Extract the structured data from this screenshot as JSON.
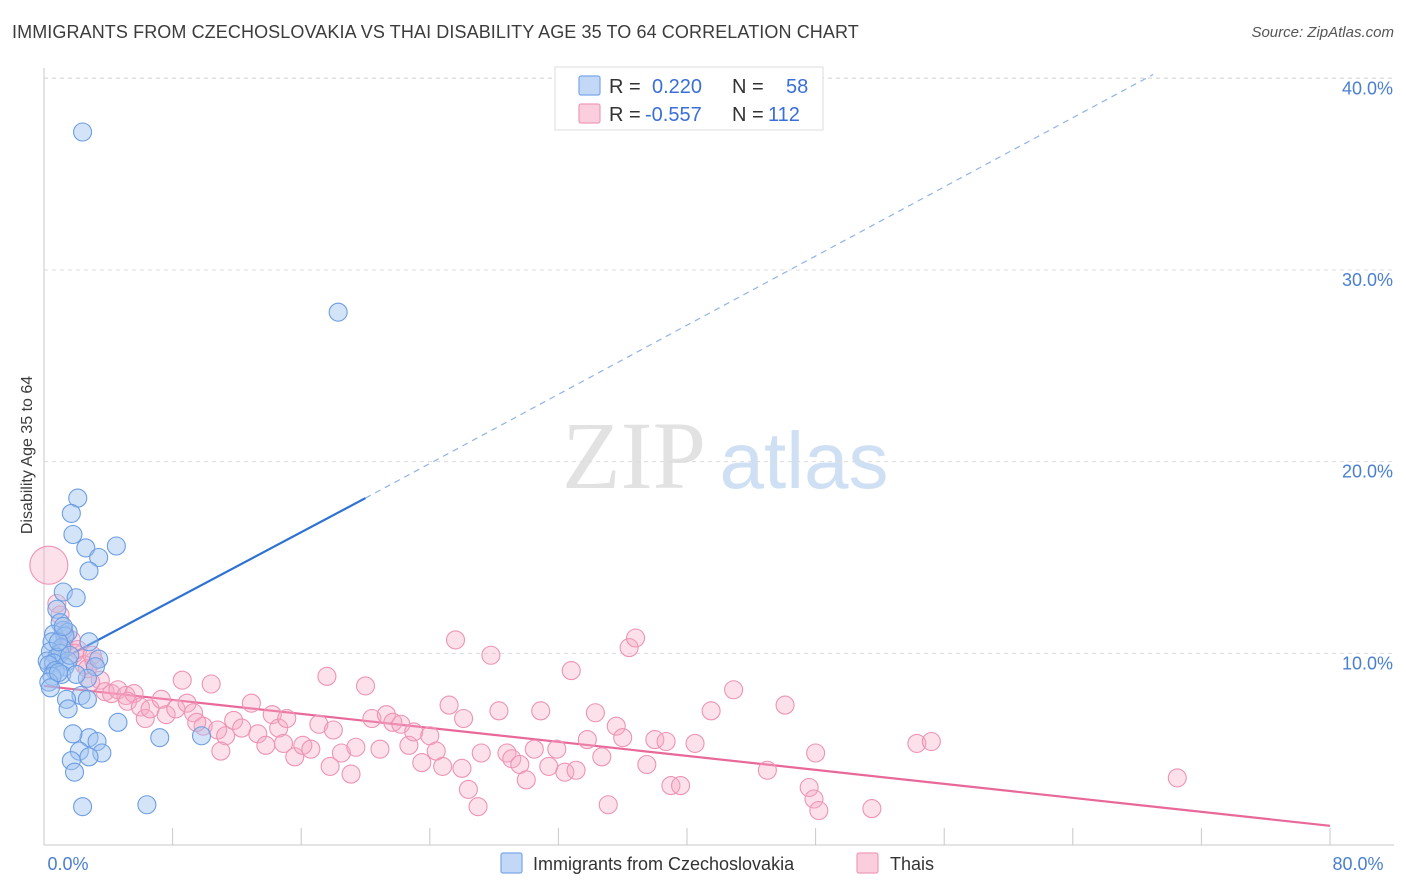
{
  "title": "IMMIGRANTS FROM CZECHOSLOVAKIA VS THAI DISABILITY AGE 35 TO 64 CORRELATION CHART",
  "source": "Source: ZipAtlas.com",
  "watermark": {
    "zip": "ZIP",
    "atlas": "atlas"
  },
  "stats_legend": [
    {
      "r_label": "R =",
      "r_value": "0.220",
      "n_label": "N =",
      "n_value": "58",
      "color": "#8fb6ef"
    },
    {
      "r_label": "R =",
      "r_value": "-0.557",
      "n_label": "N =",
      "n_value": "112",
      "color": "#f4a3c0"
    }
  ],
  "chart_data": {
    "type": "scatter",
    "ylabel": "Disability Age 35 to 64",
    "xlim": [
      0,
      80
    ],
    "ylim": [
      0,
      42
    ],
    "y_ticks": [
      {
        "v": 10,
        "label": "10.0%"
      },
      {
        "v": 20,
        "label": "20.0%"
      },
      {
        "v": 30,
        "label": "30.0%"
      },
      {
        "v": 40,
        "label": "40.0%"
      }
    ],
    "x_tick_labels": [
      {
        "v": 0,
        "label": "0.0%"
      },
      {
        "v": 80,
        "label": "80.0%"
      }
    ],
    "grid": "horizontal dashed",
    "legend_position": "bottom-center",
    "series": [
      {
        "name": "Immigrants from Czechoslovakia",
        "color": "#7aa7ea",
        "trend": {
          "x0": 0,
          "y0": 9.2,
          "x1": 20,
          "y1": 18.1,
          "dashed_to_x": 69,
          "dashed_to_y": 40.2
        },
        "points": [
          [
            2.4,
            37.2
          ],
          [
            18.3,
            27.8
          ],
          [
            2.1,
            18.1
          ],
          [
            1.7,
            17.3
          ],
          [
            1.8,
            16.2
          ],
          [
            4.5,
            15.6
          ],
          [
            2.6,
            15.5
          ],
          [
            3.4,
            15.0
          ],
          [
            2.8,
            14.3
          ],
          [
            1.2,
            13.2
          ],
          [
            2.0,
            12.9
          ],
          [
            0.8,
            12.3
          ],
          [
            1.0,
            11.6
          ],
          [
            1.2,
            11.2
          ],
          [
            1.5,
            11.1
          ],
          [
            0.6,
            11.0
          ],
          [
            1.3,
            10.9
          ],
          [
            0.5,
            10.6
          ],
          [
            2.8,
            10.6
          ],
          [
            1.1,
            10.3
          ],
          [
            0.4,
            10.1
          ],
          [
            1.0,
            10.0
          ],
          [
            0.8,
            9.8
          ],
          [
            3.4,
            9.7
          ],
          [
            0.2,
            9.6
          ],
          [
            1.5,
            9.6
          ],
          [
            0.6,
            9.5
          ],
          [
            0.3,
            9.4
          ],
          [
            1.3,
            9.3
          ],
          [
            3.2,
            9.3
          ],
          [
            0.7,
            9.1
          ],
          [
            1.1,
            8.9
          ],
          [
            0.5,
            8.8
          ],
          [
            2.7,
            8.7
          ],
          [
            0.3,
            8.5
          ],
          [
            0.4,
            8.2
          ],
          [
            2.3,
            7.8
          ],
          [
            1.4,
            7.6
          ],
          [
            2.7,
            7.6
          ],
          [
            1.5,
            7.1
          ],
          [
            4.6,
            6.4
          ],
          [
            2.8,
            5.6
          ],
          [
            1.8,
            5.8
          ],
          [
            7.2,
            5.6
          ],
          [
            9.8,
            5.7
          ],
          [
            3.3,
            5.4
          ],
          [
            2.2,
            4.9
          ],
          [
            3.6,
            4.8
          ],
          [
            1.7,
            4.4
          ],
          [
            2.8,
            4.6
          ],
          [
            1.9,
            3.8
          ],
          [
            2.4,
            2.0
          ],
          [
            6.4,
            2.1
          ],
          [
            0.9,
            10.6
          ],
          [
            1.6,
            9.9
          ],
          [
            0.9,
            9.0
          ],
          [
            2.0,
            8.9
          ],
          [
            1.2,
            11.4
          ]
        ]
      },
      {
        "name": "Thais",
        "color": "#f09ab9",
        "trend": {
          "x0": 0,
          "y0": 8.3,
          "x1": 80,
          "y1": 1.0
        },
        "points": [
          [
            0.3,
            14.6
          ],
          [
            0.8,
            12.6
          ],
          [
            1.0,
            12.0
          ],
          [
            1.3,
            11.0
          ],
          [
            1.7,
            10.7
          ],
          [
            1.2,
            10.4
          ],
          [
            2.1,
            10.2
          ],
          [
            1.9,
            10.0
          ],
          [
            3.1,
            9.6
          ],
          [
            2.5,
            9.4
          ],
          [
            2.7,
            9.2
          ],
          [
            3.5,
            8.6
          ],
          [
            2.9,
            8.5
          ],
          [
            3.8,
            8.0
          ],
          [
            4.2,
            7.9
          ],
          [
            4.6,
            8.1
          ],
          [
            5.1,
            7.8
          ],
          [
            5.6,
            7.9
          ],
          [
            5.2,
            7.5
          ],
          [
            6.0,
            7.2
          ],
          [
            6.3,
            6.6
          ],
          [
            6.6,
            7.1
          ],
          [
            7.3,
            7.6
          ],
          [
            7.6,
            6.8
          ],
          [
            8.2,
            7.1
          ],
          [
            8.6,
            8.6
          ],
          [
            8.9,
            7.4
          ],
          [
            9.3,
            6.9
          ],
          [
            9.9,
            6.2
          ],
          [
            10.4,
            8.4
          ],
          [
            10.8,
            6.0
          ],
          [
            11.3,
            5.7
          ],
          [
            11.8,
            6.5
          ],
          [
            12.3,
            6.1
          ],
          [
            12.9,
            7.4
          ],
          [
            13.3,
            5.8
          ],
          [
            13.8,
            5.2
          ],
          [
            14.2,
            6.8
          ],
          [
            14.6,
            6.1
          ],
          [
            15.1,
            6.6
          ],
          [
            15.6,
            4.6
          ],
          [
            16.1,
            5.2
          ],
          [
            16.6,
            5.0
          ],
          [
            17.1,
            6.3
          ],
          [
            17.6,
            8.8
          ],
          [
            18.0,
            6.0
          ],
          [
            18.5,
            4.8
          ],
          [
            19.1,
            3.7
          ],
          [
            19.4,
            5.1
          ],
          [
            20.0,
            8.3
          ],
          [
            20.4,
            6.6
          ],
          [
            20.9,
            5.0
          ],
          [
            21.3,
            6.8
          ],
          [
            21.7,
            6.4
          ],
          [
            22.2,
            6.3
          ],
          [
            22.7,
            5.2
          ],
          [
            23.0,
            5.9
          ],
          [
            23.5,
            4.3
          ],
          [
            24.0,
            5.7
          ],
          [
            24.4,
            4.9
          ],
          [
            24.8,
            4.1
          ],
          [
            25.2,
            7.3
          ],
          [
            25.6,
            10.7
          ],
          [
            26.1,
            6.6
          ],
          [
            26.4,
            2.9
          ],
          [
            27.0,
            2.0
          ],
          [
            27.2,
            4.8
          ],
          [
            27.8,
            9.9
          ],
          [
            28.3,
            7.0
          ],
          [
            28.8,
            4.8
          ],
          [
            29.1,
            4.5
          ],
          [
            29.6,
            4.2
          ],
          [
            30.0,
            3.4
          ],
          [
            30.5,
            5.0
          ],
          [
            30.9,
            7.0
          ],
          [
            31.4,
            4.1
          ],
          [
            31.9,
            5.0
          ],
          [
            32.4,
            3.8
          ],
          [
            32.8,
            9.1
          ],
          [
            33.1,
            3.9
          ],
          [
            33.8,
            5.5
          ],
          [
            34.3,
            6.9
          ],
          [
            34.7,
            4.6
          ],
          [
            35.1,
            2.1
          ],
          [
            35.6,
            6.2
          ],
          [
            36.0,
            5.6
          ],
          [
            36.4,
            10.3
          ],
          [
            36.8,
            10.8
          ],
          [
            37.5,
            4.2
          ],
          [
            38.0,
            5.5
          ],
          [
            38.7,
            5.4
          ],
          [
            39.0,
            3.1
          ],
          [
            39.6,
            3.1
          ],
          [
            40.5,
            5.3
          ],
          [
            41.5,
            7.0
          ],
          [
            42.9,
            8.1
          ],
          [
            45.0,
            3.9
          ],
          [
            46.1,
            7.3
          ],
          [
            47.6,
            3.0
          ],
          [
            47.9,
            2.4
          ],
          [
            48.0,
            4.8
          ],
          [
            48.2,
            1.8
          ],
          [
            51.5,
            1.9
          ],
          [
            54.3,
            5.3
          ],
          [
            55.2,
            5.4
          ],
          [
            70.5,
            3.5
          ],
          [
            11.0,
            4.9
          ],
          [
            14.9,
            5.3
          ],
          [
            17.8,
            4.1
          ],
          [
            26.0,
            4.0
          ],
          [
            3.0,
            9.9
          ],
          [
            9.5,
            6.4
          ]
        ]
      }
    ]
  }
}
